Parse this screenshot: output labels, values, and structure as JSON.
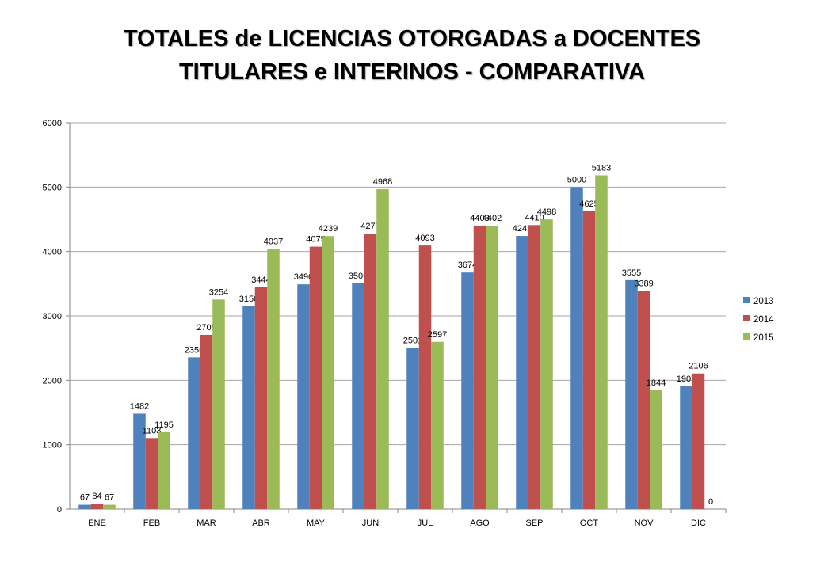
{
  "chart_data": {
    "type": "bar",
    "title_lines": [
      "TOTALES de LICENCIAS  OTORGADAS a DOCENTES",
      "TITULARES e INTERINOS - COMPARATIVA"
    ],
    "categories": [
      "ENE",
      "FEB",
      "MAR",
      "ABR",
      "MAY",
      "JUN",
      "JUL",
      "AGO",
      "SEP",
      "OCT",
      "NOV",
      "DIC"
    ],
    "series": [
      {
        "name": "2013",
        "color": "#4F81BD",
        "values": [
          67,
          1482,
          2356,
          3150,
          3490,
          3506,
          2501,
          3674,
          4241,
          5000,
          3555,
          1907
        ]
      },
      {
        "name": "2014",
        "color": "#C0504D",
        "values": [
          84,
          1103,
          2705,
          3444,
          4075,
          4277,
          4093,
          4403,
          4410,
          4625,
          3389,
          2106
        ]
      },
      {
        "name": "2015",
        "color": "#9BBB59",
        "values": [
          67,
          1195,
          3254,
          4037,
          4239,
          4968,
          2597,
          4402,
          4498,
          5183,
          1844,
          0
        ]
      }
    ],
    "value_labels": [
      [
        "67",
        "1482",
        "2356",
        "3150",
        "3490",
        "3506",
        "2501",
        "3674",
        "4241",
        "5000",
        "3555",
        "1907"
      ],
      [
        "84",
        "1103",
        "2705",
        "3444",
        "4075",
        "4277",
        "4093",
        "4403",
        "4410",
        "4625",
        "3389",
        "2106"
      ],
      [
        "67",
        "1195",
        "3254",
        "4037",
        "4239",
        "4968",
        "2597",
        "4402",
        "4498",
        "5183",
        "1844",
        "0"
      ]
    ],
    "ylim": [
      0,
      6000
    ],
    "yticks": [
      "0",
      "1000",
      "2000",
      "3000",
      "4000",
      "5000",
      "6000"
    ],
    "grid": true,
    "legend_position": "right"
  }
}
